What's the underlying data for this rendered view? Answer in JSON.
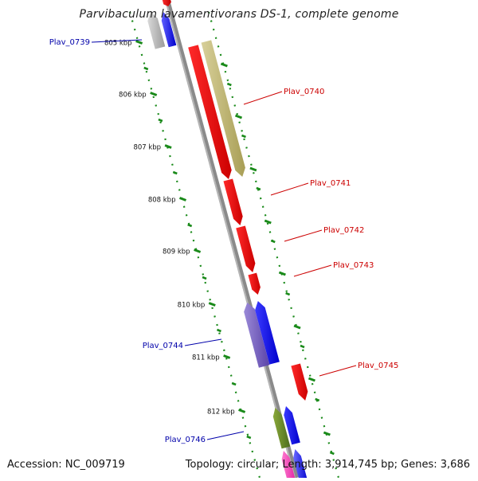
{
  "title": "Parvibaculum lavamentivorans DS-1, complete genome",
  "footer": {
    "accession_label": "Accession:",
    "accession": "NC_009719",
    "topology_label": "Topology:",
    "topology": "circular",
    "length_label": "Length:",
    "length": "3,914,745 bp",
    "genes_label": "Genes:",
    "genes": "3,686"
  },
  "colors": {
    "backbone": "#8a8a8a",
    "ruler": "#1a8a1a",
    "forward_label": "#cc0000",
    "reverse_label": "#0000aa"
  },
  "ruler_labels": [
    "805 kbp",
    "806 kbp",
    "807 kbp",
    "808 kbp",
    "809 kbp",
    "810 kbp",
    "811 kbp",
    "812 kbp"
  ],
  "genes": [
    {
      "id": "Plav_0739",
      "strand": "reverse"
    },
    {
      "id": "Plav_0740",
      "strand": "forward"
    },
    {
      "id": "Plav_0741",
      "strand": "forward"
    },
    {
      "id": "Plav_0742",
      "strand": "forward"
    },
    {
      "id": "Plav_0743",
      "strand": "forward"
    },
    {
      "id": "Plav_0744",
      "strand": "reverse"
    },
    {
      "id": "Plav_0745",
      "strand": "forward"
    },
    {
      "id": "Plav_0746",
      "strand": "reverse"
    }
  ]
}
